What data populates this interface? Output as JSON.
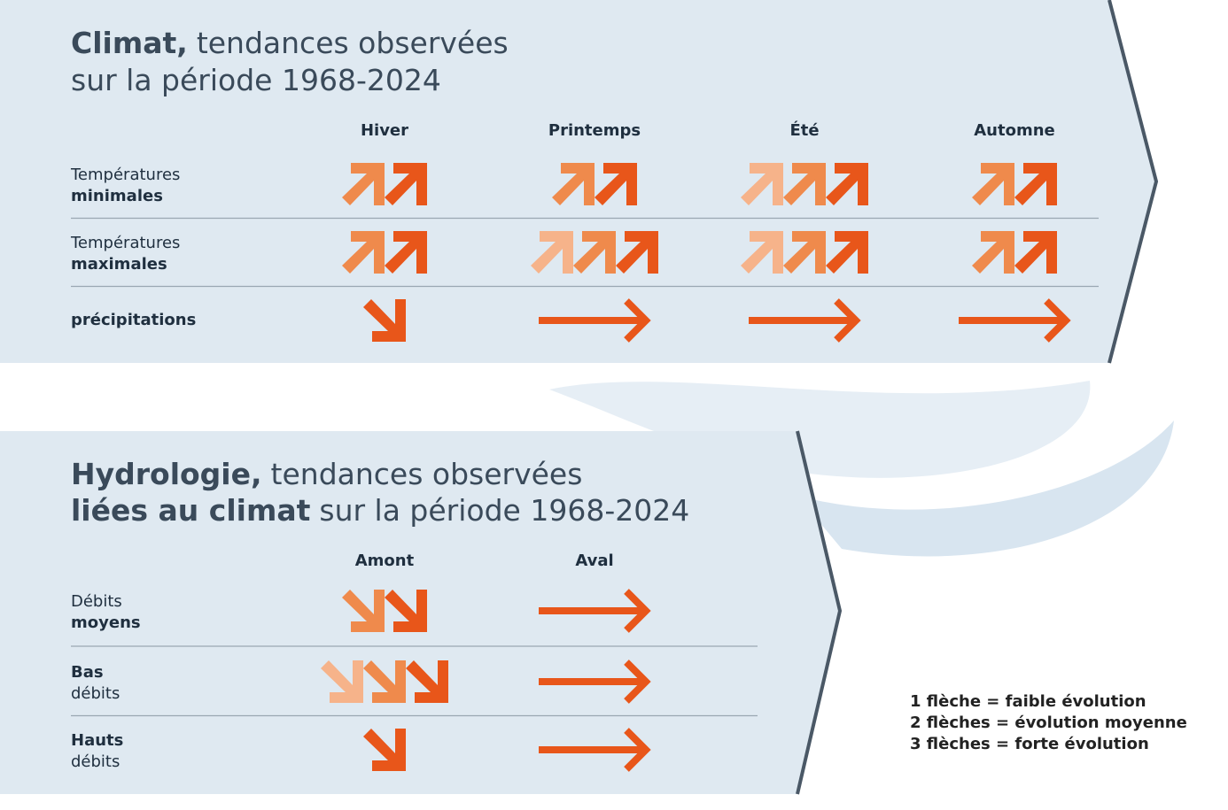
{
  "climate": {
    "title": {
      "bold": "Climat,",
      "rest": "tendances observées",
      "line2": "sur la période 1968-2024"
    },
    "columns": [
      "Hiver",
      "Printemps",
      "Été",
      "Automne"
    ],
    "rows": [
      {
        "label": [
          {
            "text": "Températures",
            "bold": false
          },
          {
            "text": "minimales",
            "bold": true
          }
        ],
        "cells": [
          {
            "direction": "up",
            "count": 2
          },
          {
            "direction": "up",
            "count": 2
          },
          {
            "direction": "up",
            "count": 3
          },
          {
            "direction": "up",
            "count": 2
          }
        ]
      },
      {
        "label": [
          {
            "text": "Températures",
            "bold": false
          },
          {
            "text": "maximales",
            "bold": true
          }
        ],
        "cells": [
          {
            "direction": "up",
            "count": 2
          },
          {
            "direction": "up",
            "count": 3
          },
          {
            "direction": "up",
            "count": 3
          },
          {
            "direction": "up",
            "count": 2
          }
        ]
      },
      {
        "label": [
          {
            "text": "précipitations",
            "bold": true
          }
        ],
        "cells": [
          {
            "direction": "down",
            "count": 1
          },
          {
            "direction": "flat",
            "count": 1
          },
          {
            "direction": "flat",
            "count": 1
          },
          {
            "direction": "flat",
            "count": 1
          }
        ]
      }
    ]
  },
  "hydrology": {
    "title": {
      "bold": "Hydrologie,",
      "rest": "tendances observées",
      "line2_bold": "liées au climat",
      "line2": "sur la période 1968-2024"
    },
    "columns": [
      "Amont",
      "Aval"
    ],
    "rows": [
      {
        "label": [
          {
            "text": "Débits",
            "bold": false
          },
          {
            "text": "moyens",
            "bold": true
          }
        ],
        "cells": [
          {
            "direction": "down",
            "count": 2
          },
          {
            "direction": "flat",
            "count": 1
          }
        ]
      },
      {
        "label": [
          {
            "text": "Bas",
            "bold": true
          },
          {
            "text": "débits",
            "bold": false
          }
        ],
        "cells": [
          {
            "direction": "down",
            "count": 3
          },
          {
            "direction": "flat",
            "count": 1
          }
        ]
      },
      {
        "label": [
          {
            "text": "Hauts",
            "bold": true
          },
          {
            "text": "débits",
            "bold": false
          }
        ],
        "cells": [
          {
            "direction": "down",
            "count": 1
          },
          {
            "direction": "flat",
            "count": 1
          }
        ]
      }
    ]
  },
  "legend": [
    "1 flèche = faible évolution",
    "2 flèches = évolution moyenne",
    "3 flèches = forte évolution"
  ]
}
